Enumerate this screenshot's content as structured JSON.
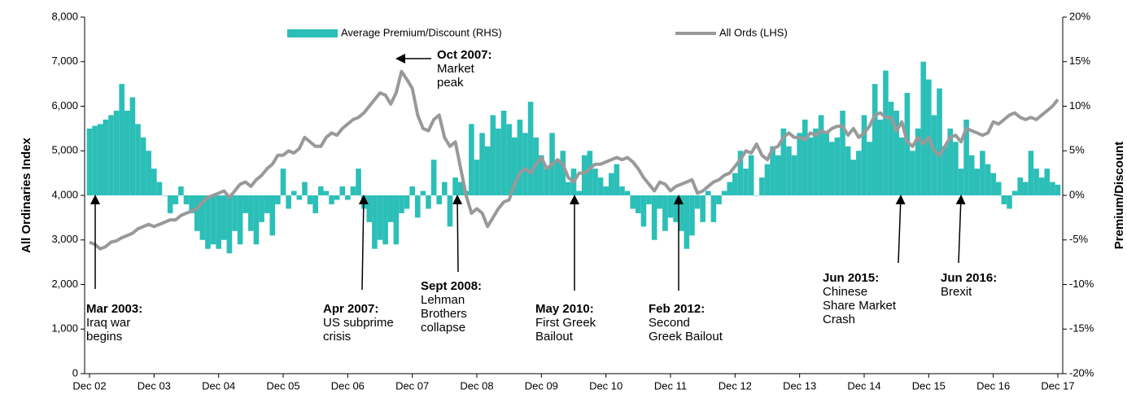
{
  "chart_data": {
    "type": "bar-line",
    "y_label": "All Ordinaries Index",
    "y2_label": "Premium/Discount",
    "categories": [
      "Dec 02",
      null,
      null,
      null,
      null,
      null,
      null,
      null,
      null,
      null,
      null,
      null,
      "Dec 03",
      null,
      null,
      null,
      null,
      null,
      null,
      null,
      null,
      null,
      null,
      null,
      "Dec 04",
      null,
      null,
      null,
      null,
      null,
      null,
      null,
      null,
      null,
      null,
      null,
      "Dec 05",
      null,
      null,
      null,
      null,
      null,
      null,
      null,
      null,
      null,
      null,
      null,
      "Dec 06",
      null,
      null,
      null,
      null,
      null,
      null,
      null,
      null,
      null,
      null,
      null,
      "Dec 07",
      null,
      null,
      null,
      null,
      null,
      null,
      null,
      null,
      null,
      null,
      null,
      "Dec 08",
      null,
      null,
      null,
      null,
      null,
      null,
      null,
      null,
      null,
      null,
      null,
      "Dec 09",
      null,
      null,
      null,
      null,
      null,
      null,
      null,
      null,
      null,
      null,
      null,
      "Dec 10",
      null,
      null,
      null,
      null,
      null,
      null,
      null,
      null,
      null,
      null,
      null,
      "Dec 11",
      null,
      null,
      null,
      null,
      null,
      null,
      null,
      null,
      null,
      null,
      null,
      "Dec 12",
      null,
      null,
      null,
      null,
      null,
      null,
      null,
      null,
      null,
      null,
      null,
      "Dec 13",
      null,
      null,
      null,
      null,
      null,
      null,
      null,
      null,
      null,
      null,
      null,
      "Dec 14",
      null,
      null,
      null,
      null,
      null,
      null,
      null,
      null,
      null,
      null,
      null,
      "Dec 15",
      null,
      null,
      null,
      null,
      null,
      null,
      null,
      null,
      null,
      null,
      null,
      "Dec 16",
      null,
      null,
      null,
      null,
      null,
      null,
      null,
      null,
      null,
      null,
      null,
      "Dec 17"
    ],
    "series": [
      {
        "name": "Average Premium/Discount (RHS)",
        "type": "bar",
        "axis": "y2",
        "color": "#2bbfb8",
        "values": [
          7.5,
          7.8,
          8,
          8.5,
          9,
          9.5,
          12.5,
          9.5,
          11,
          8,
          6.5,
          5,
          3,
          1.5,
          0,
          -2,
          -1,
          1,
          -1,
          -2,
          -4,
          -5,
          -6,
          -5.5,
          -6,
          -5,
          -6.5,
          -4,
          -5.5,
          -2,
          -4,
          -5.5,
          -3,
          -2,
          -4.5,
          -1,
          3,
          -1.5,
          0.5,
          -0.5,
          1.5,
          -1,
          -2,
          1,
          0.5,
          -1,
          -0.5,
          1,
          -0.5,
          1,
          3,
          -1.5,
          -3,
          -6,
          -5,
          -5.5,
          -3,
          -5.5,
          -2,
          -1.5,
          1,
          -2.5,
          0.5,
          -1.5,
          4,
          -1,
          1.5,
          -3.5,
          2,
          1.5,
          0.5,
          8,
          4,
          7,
          5.5,
          9,
          7.5,
          9.5,
          8,
          6.5,
          8.5,
          7,
          10.5,
          6.5,
          4.5,
          3,
          7,
          4,
          5,
          1.5,
          3,
          0.5,
          4.5,
          5,
          3,
          2,
          1,
          2.5,
          3.5,
          1,
          0.5,
          -1.5,
          -2,
          -3.5,
          -1,
          -5,
          -1.5,
          -4,
          -2.5,
          -3,
          -4,
          -6,
          -4.5,
          -1.5,
          -3,
          0.5,
          -3,
          -1,
          0.5,
          1.5,
          2.5,
          5,
          3,
          4.5,
          0,
          2,
          3.5,
          5.5,
          4.5,
          7.5,
          5.5,
          4.5,
          7,
          8.5,
          6.5,
          7.5,
          9,
          7,
          6,
          6.5,
          9.5,
          5.5,
          4,
          5,
          9,
          6,
          12.5,
          8.5,
          14,
          10.5,
          9.5,
          6.5,
          11.5,
          5,
          7.5,
          15,
          13,
          9,
          12,
          5.5,
          7.5,
          6,
          3,
          8.5,
          4.5,
          3,
          5,
          3.5,
          2.5,
          1.5,
          -1,
          -1.5,
          0.5,
          2,
          1.5,
          5,
          3,
          2,
          3,
          1.5,
          1.2
        ]
      },
      {
        "name": "All Ords (LHS)",
        "type": "line",
        "axis": "y",
        "color": "#999999",
        "values": [
          2950,
          2900,
          2800,
          2850,
          2950,
          2980,
          3050,
          3100,
          3150,
          3250,
          3300,
          3350,
          3300,
          3350,
          3400,
          3450,
          3450,
          3550,
          3600,
          3650,
          3700,
          3850,
          3950,
          4000,
          4050,
          4100,
          3950,
          4100,
          4250,
          4300,
          4200,
          4350,
          4450,
          4600,
          4700,
          4900,
          4900,
          5000,
          4950,
          5050,
          5300,
          5200,
          5100,
          5100,
          5300,
          5400,
          5350,
          5500,
          5600,
          5700,
          5750,
          5850,
          6000,
          6150,
          6300,
          6250,
          6050,
          6300,
          6780,
          6600,
          6400,
          5800,
          5500,
          5450,
          5700,
          5800,
          5300,
          5100,
          5200,
          4600,
          4000,
          3600,
          3700,
          3600,
          3300,
          3500,
          3700,
          3850,
          3900,
          4250,
          4500,
          4600,
          4500,
          4700,
          4850,
          4600,
          4700,
          4800,
          4700,
          4400,
          4300,
          4500,
          4500,
          4600,
          4700,
          4700,
          4750,
          4800,
          4850,
          4800,
          4850,
          4750,
          4600,
          4400,
          4250,
          4100,
          4300,
          4250,
          4100,
          4200,
          4250,
          4300,
          4350,
          4050,
          4100,
          4200,
          4300,
          4350,
          4450,
          4500,
          4650,
          4800,
          5000,
          4950,
          5150,
          4900,
          4800,
          5050,
          5100,
          5300,
          5400,
          5300,
          5300,
          5250,
          5400,
          5350,
          5450,
          5400,
          5500,
          5550,
          5550,
          5350,
          5500,
          5300,
          5400,
          5550,
          5800,
          5850,
          5750,
          5750,
          5450,
          5650,
          5200,
          5100,
          5300,
          5150,
          5300,
          5000,
          4900,
          5100,
          5300,
          5350,
          5200,
          5500,
          5450,
          5400,
          5350,
          5400,
          5650,
          5600,
          5700,
          5800,
          5850,
          5750,
          5700,
          5750,
          5700,
          5800,
          5900,
          6000,
          6150
        ]
      }
    ],
    "ylim": [
      0,
      8000
    ],
    "yticks": [
      0,
      {
        "value": 1000,
        "label": "1,000"
      },
      {
        "value": 2000,
        "label": "2,000"
      },
      {
        "value": 3000,
        "label": "3,000"
      },
      {
        "value": 4000,
        "label": "4,000"
      },
      {
        "value": 5000,
        "label": "5,000"
      },
      {
        "value": 6000,
        "label": "6,000"
      },
      {
        "value": 7000,
        "label": "7,000"
      },
      {
        "value": 8000,
        "label": "8,000"
      }
    ],
    "y2lim": [
      -20,
      20
    ],
    "y2ticks": [
      {
        "value": -20,
        "label": "-20%"
      },
      {
        "value": -15,
        "label": "-15%"
      },
      {
        "value": -10,
        "label": "-10%"
      },
      {
        "value": -5,
        "label": "-5%"
      },
      {
        "value": 0,
        "label": "0%"
      },
      {
        "value": 5,
        "label": "5%"
      },
      {
        "value": 10,
        "label": "10%"
      },
      {
        "value": 15,
        "label": "15%"
      },
      {
        "value": 20,
        "label": "20%"
      }
    ],
    "annotations": [
      {
        "label": "Mar 2003:",
        "lines": [
          "Iraq war",
          "begins"
        ]
      },
      {
        "label": "Oct 2007:",
        "lines": [
          "Market",
          "peak"
        ]
      },
      {
        "label": "Apr 2007:",
        "lines": [
          "US subprime",
          "crisis"
        ]
      },
      {
        "label": "Sept 2008:",
        "lines": [
          "Lehman",
          "Brothers",
          "collapse"
        ]
      },
      {
        "label": "May 2010:",
        "lines": [
          "First Greek",
          "Bailout"
        ]
      },
      {
        "label": "Feb 2012:",
        "lines": [
          "Second",
          "Greek Bailout"
        ]
      },
      {
        "label": "Jun 2015:",
        "lines": [
          "Chinese",
          "Share Market",
          "Crash"
        ]
      },
      {
        "label": "Jun 2016:",
        "lines": [
          "Brexit"
        ]
      }
    ]
  }
}
